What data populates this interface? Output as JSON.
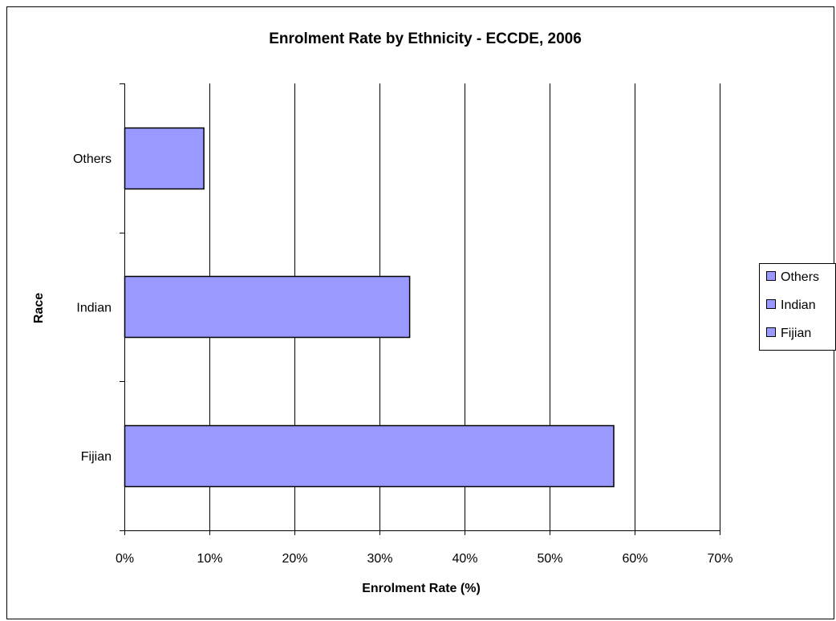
{
  "chart_data": {
    "type": "bar",
    "orientation": "horizontal",
    "title": "Enrolment Rate by Ethnicity - ECCDE, 2006",
    "xlabel": "Enrolment Rate (%)",
    "ylabel": "Race",
    "categories": [
      "Others",
      "Indian",
      "Fijian"
    ],
    "values": [
      0.093,
      0.335,
      0.575
    ],
    "xlim": [
      0,
      0.7
    ],
    "x_ticks": [
      0,
      0.1,
      0.2,
      0.3,
      0.4,
      0.5,
      0.6,
      0.7
    ],
    "x_tick_labels": [
      "0%",
      "10%",
      "20%",
      "30%",
      "40%",
      "50%",
      "60%",
      "70%"
    ],
    "grid": "vertical major gridlines",
    "legend": {
      "placement": "right",
      "entries": [
        "Others",
        "Indian",
        "Fijian"
      ]
    },
    "colors": {
      "bar_fill": "#9999ff",
      "bar_stroke": "#000000",
      "grid": "#000000"
    }
  }
}
